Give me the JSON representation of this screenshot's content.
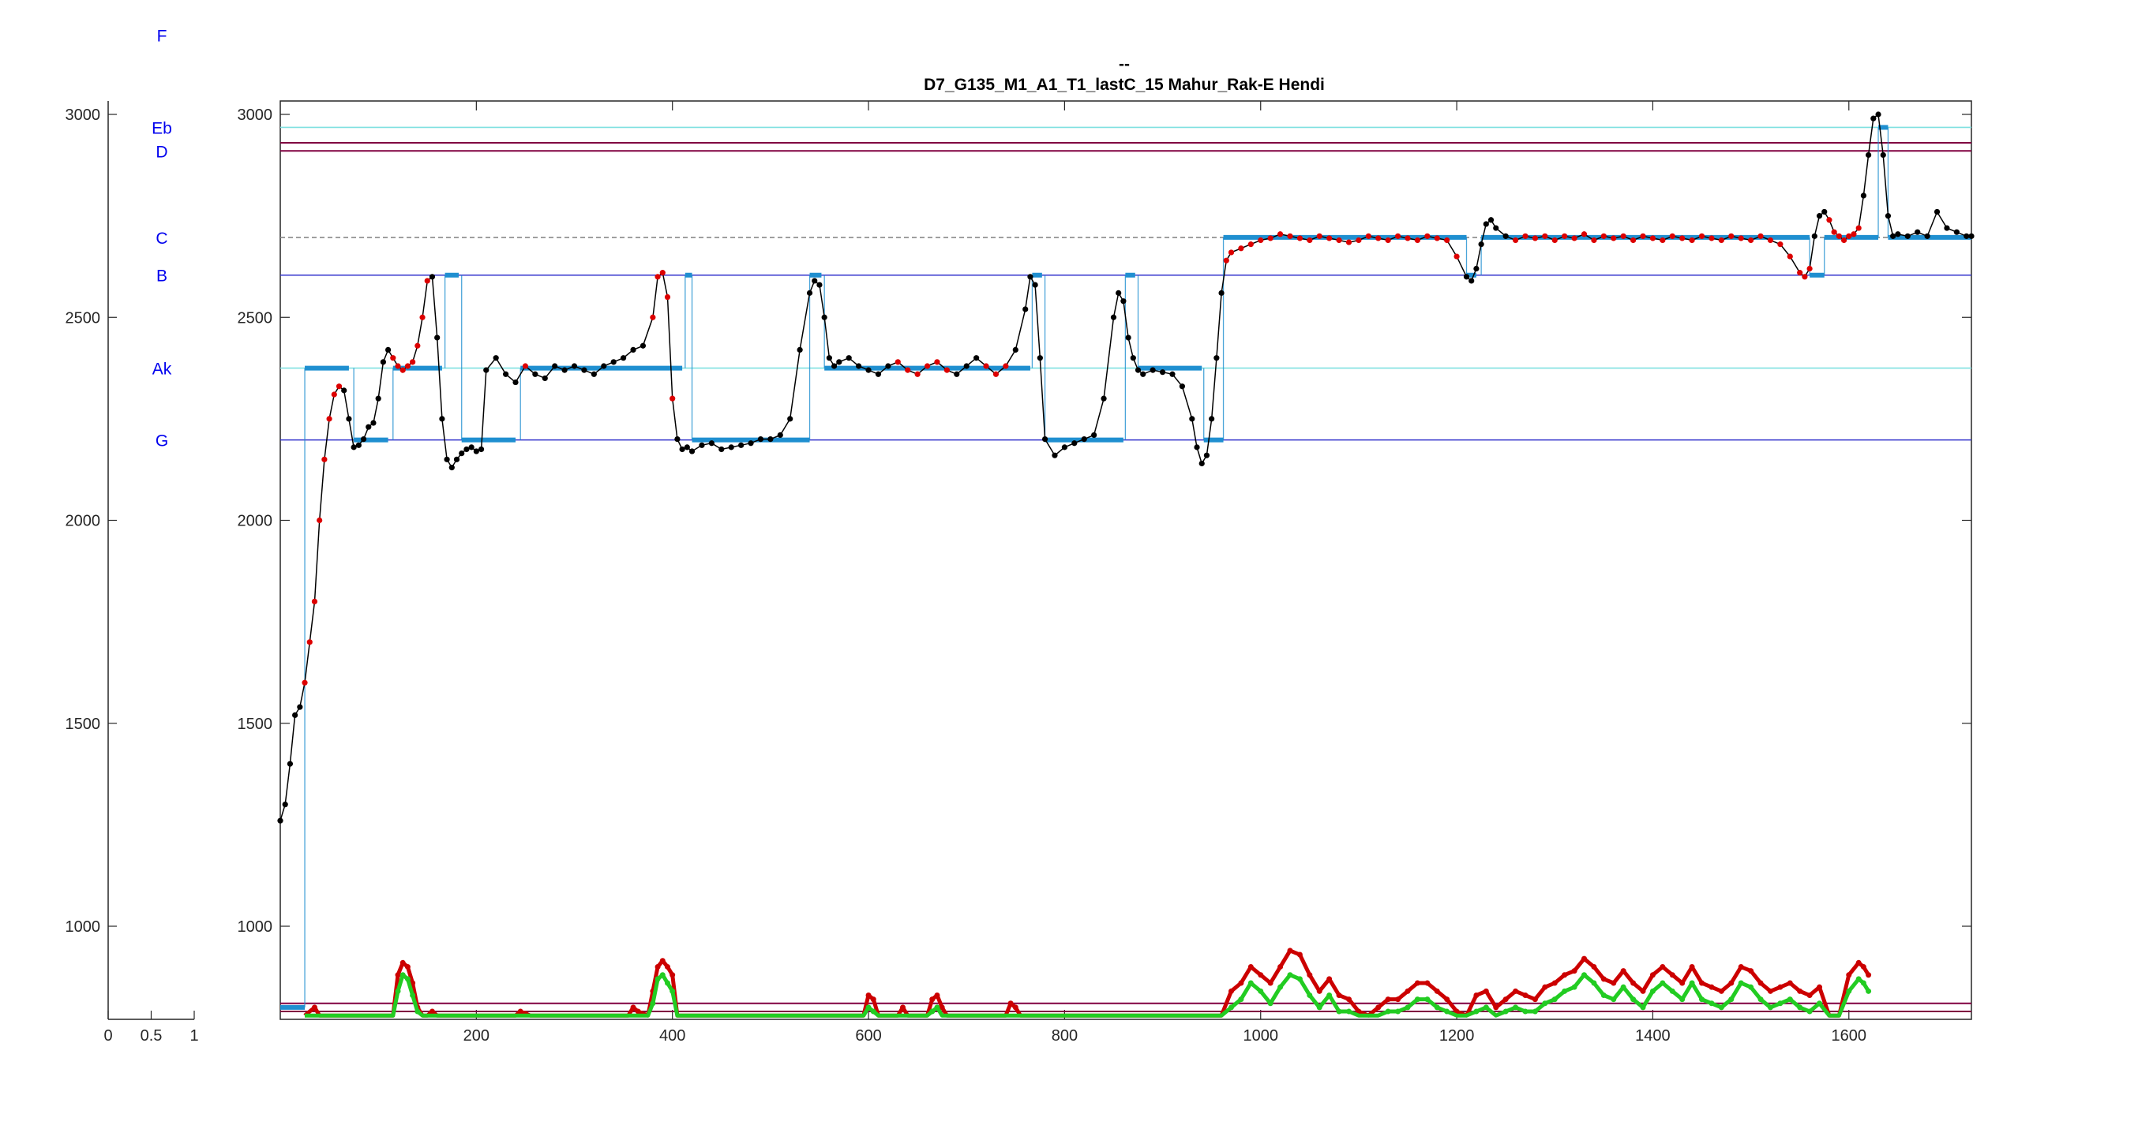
{
  "title_line1": "--",
  "title_line2": "D7_G135_M1_A1_T1_lastC_15 Mahur_Rak-E Hendi",
  "note_axis": {
    "xticks": [
      "0",
      "0.5",
      "1"
    ],
    "yticks": [
      "3000",
      "2500",
      "2000",
      "1500",
      "1000"
    ]
  },
  "main_axis": {
    "xticks": [
      "200",
      "400",
      "600",
      "800",
      "1000",
      "1200",
      "1400",
      "1600"
    ],
    "yticks": [
      "3000",
      "2500",
      "2000",
      "1500",
      "1000"
    ]
  },
  "notes": [
    "F",
    "Eb",
    "D",
    "C",
    "B",
    "Ak",
    "G"
  ],
  "colors": {
    "pitch_black": "#000000",
    "pitch_red": "#dd0000",
    "segments_blue": "#1f8fd0",
    "energy_red": "#cc0000",
    "energy_green": "#22cc22",
    "line_blue": "#3333cc",
    "line_cyan": "#7fe0e0",
    "line_maroon": "#800040",
    "line_grey": "#888888"
  },
  "chart_data": {
    "type": "line",
    "title": "D7_G135_M1_A1_T1_lastC_15 Mahur_Rak-E Hendi",
    "xlim": [
      0,
      1725
    ],
    "ylim": [
      780,
      3030
    ],
    "grid": false,
    "note_lines": [
      {
        "name": "Eb",
        "y": 2968,
        "color": "cyan"
      },
      {
        "name": "",
        "y": 2930,
        "color": "maroon"
      },
      {
        "name": "D",
        "y": 2910,
        "color": "maroon"
      },
      {
        "name": "C",
        "y": 2697,
        "color": "grey-dashed"
      },
      {
        "name": "B",
        "y": 2604,
        "color": "blue"
      },
      {
        "name": "Ak",
        "y": 2375,
        "color": "cyan"
      },
      {
        "name": "G",
        "y": 2198,
        "color": "blue"
      },
      {
        "name": "",
        "y": 810,
        "color": "maroon"
      },
      {
        "name": "",
        "y": 790,
        "color": "maroon"
      }
    ],
    "pitch": {
      "x": [
        0,
        5,
        10,
        15,
        20,
        25,
        30,
        35,
        40,
        45,
        50,
        55,
        60,
        65,
        70,
        75,
        80,
        85,
        90,
        95,
        100,
        105,
        110,
        115,
        120,
        125,
        130,
        135,
        140,
        145,
        150,
        155,
        160,
        165,
        170,
        175,
        180,
        185,
        190,
        195,
        200,
        205,
        210,
        220,
        230,
        240,
        250,
        260,
        270,
        280,
        290,
        300,
        310,
        320,
        330,
        340,
        350,
        360,
        370,
        380,
        385,
        390,
        395,
        400,
        405,
        410,
        415,
        420,
        430,
        440,
        450,
        460,
        470,
        480,
        490,
        500,
        510,
        520,
        530,
        540,
        545,
        550,
        555,
        560,
        565,
        570,
        580,
        590,
        600,
        610,
        620,
        630,
        640,
        650,
        660,
        670,
        680,
        690,
        700,
        710,
        720,
        730,
        740,
        750,
        760,
        765,
        770,
        775,
        780,
        790,
        800,
        810,
        820,
        830,
        840,
        850,
        855,
        860,
        865,
        870,
        875,
        880,
        890,
        900,
        910,
        920,
        930,
        935,
        940,
        945,
        950,
        955,
        960,
        965,
        970,
        980,
        990,
        1000,
        1010,
        1020,
        1030,
        1040,
        1050,
        1060,
        1070,
        1080,
        1090,
        1100,
        1110,
        1120,
        1130,
        1140,
        1150,
        1160,
        1170,
        1180,
        1190,
        1200,
        1210,
        1215,
        1220,
        1225,
        1230,
        1235,
        1240,
        1250,
        1260,
        1270,
        1280,
        1290,
        1300,
        1310,
        1320,
        1330,
        1340,
        1350,
        1360,
        1370,
        1380,
        1390,
        1400,
        1410,
        1420,
        1430,
        1440,
        1450,
        1460,
        1470,
        1480,
        1490,
        1500,
        1510,
        1520,
        1530,
        1540,
        1550,
        1555,
        1560,
        1565,
        1570,
        1575,
        1580,
        1585,
        1590,
        1595,
        1600,
        1605,
        1610,
        1615,
        1620,
        1625,
        1630,
        1635,
        1640,
        1645,
        1650,
        1660,
        1670,
        1680,
        1690,
        1700,
        1710,
        1720,
        1725
      ],
      "y": [
        1260,
        1300,
        1400,
        1520,
        1540,
        1600,
        1700,
        1800,
        2000,
        2150,
        2250,
        2310,
        2330,
        2320,
        2250,
        2180,
        2185,
        2200,
        2230,
        2240,
        2300,
        2390,
        2420,
        2400,
        2380,
        2370,
        2380,
        2390,
        2430,
        2500,
        2590,
        2600,
        2450,
        2250,
        2150,
        2130,
        2150,
        2165,
        2175,
        2180,
        2170,
        2175,
        2370,
        2400,
        2360,
        2340,
        2380,
        2360,
        2350,
        2380,
        2370,
        2380,
        2370,
        2360,
        2380,
        2390,
        2400,
        2420,
        2430,
        2500,
        2600,
        2610,
        2550,
        2300,
        2200,
        2175,
        2180,
        2170,
        2185,
        2190,
        2175,
        2180,
        2185,
        2190,
        2200,
        2200,
        2210,
        2250,
        2420,
        2560,
        2590,
        2580,
        2500,
        2400,
        2380,
        2390,
        2400,
        2380,
        2370,
        2360,
        2380,
        2390,
        2370,
        2360,
        2380,
        2390,
        2370,
        2360,
        2380,
        2400,
        2380,
        2360,
        2380,
        2420,
        2520,
        2600,
        2580,
        2400,
        2200,
        2160,
        2180,
        2190,
        2200,
        2210,
        2300,
        2500,
        2560,
        2540,
        2450,
        2400,
        2370,
        2360,
        2370,
        2365,
        2360,
        2330,
        2250,
        2180,
        2140,
        2160,
        2250,
        2400,
        2560,
        2640,
        2660,
        2670,
        2680,
        2690,
        2695,
        2705,
        2700,
        2695,
        2690,
        2700,
        2695,
        2690,
        2685,
        2690,
        2700,
        2695,
        2690,
        2700,
        2695,
        2690,
        2700,
        2695,
        2690,
        2650,
        2600,
        2590,
        2620,
        2680,
        2730,
        2740,
        2720,
        2700,
        2690,
        2700,
        2695,
        2700,
        2690,
        2700,
        2695,
        2705,
        2690,
        2700,
        2695,
        2700,
        2690,
        2700,
        2695,
        2690,
        2700,
        2695,
        2690,
        2700,
        2695,
        2690,
        2700,
        2695,
        2690,
        2700,
        2690,
        2680,
        2650,
        2610,
        2600,
        2620,
        2700,
        2750,
        2760,
        2740,
        2710,
        2700,
        2690,
        2700,
        2705,
        2720,
        2800,
        2900,
        2990,
        3000,
        2900,
        2750,
        2700,
        2705,
        2700,
        2710,
        2700,
        2760,
        2720,
        2710,
        2700,
        2700
      ],
      "red_ranges": [
        [
          25,
          60
        ],
        [
          115,
          150
        ],
        [
          245,
          255
        ],
        [
          380,
          400
        ],
        [
          625,
          680
        ],
        [
          720,
          740
        ],
        [
          965,
          1200
        ],
        [
          1260,
          1560
        ],
        [
          1580,
          1610
        ]
      ]
    },
    "segments": [
      {
        "x": [
          0,
          25
        ],
        "y": 800
      },
      {
        "x": [
          25,
          70
        ],
        "y": 2375
      },
      {
        "x": [
          75,
          110
        ],
        "y": 2198
      },
      {
        "x": [
          115,
          165
        ],
        "y": 2375
      },
      {
        "x": [
          168,
          182
        ],
        "y": 2604
      },
      {
        "x": [
          185,
          240
        ],
        "y": 2198
      },
      {
        "x": [
          245,
          410
        ],
        "y": 2375
      },
      {
        "x": [
          413,
          420
        ],
        "y": 2604
      },
      {
        "x": [
          420,
          540
        ],
        "y": 2198
      },
      {
        "x": [
          540,
          552
        ],
        "y": 2604
      },
      {
        "x": [
          555,
          765
        ],
        "y": 2375
      },
      {
        "x": [
          767,
          777
        ],
        "y": 2604
      },
      {
        "x": [
          780,
          860
        ],
        "y": 2198
      },
      {
        "x": [
          862,
          872
        ],
        "y": 2604
      },
      {
        "x": [
          875,
          940
        ],
        "y": 2375
      },
      {
        "x": [
          942,
          962
        ],
        "y": 2198
      },
      {
        "x": [
          962,
          1210
        ],
        "y": 2697
      },
      {
        "x": [
          1210,
          1220
        ],
        "y": 2604
      },
      {
        "x": [
          1225,
          1560
        ],
        "y": 2697
      },
      {
        "x": [
          1560,
          1575
        ],
        "y": 2604
      },
      {
        "x": [
          1575,
          1630
        ],
        "y": 2697
      },
      {
        "x": [
          1630,
          1640
        ],
        "y": 2968
      },
      {
        "x": [
          1640,
          1725
        ],
        "y": 2697
      }
    ],
    "energy": {
      "x": [
        25,
        35,
        40,
        115,
        120,
        125,
        130,
        135,
        140,
        145,
        150,
        155,
        160,
        240,
        245,
        250,
        255,
        355,
        360,
        365,
        375,
        380,
        385,
        390,
        395,
        400,
        405,
        595,
        600,
        605,
        610,
        630,
        635,
        640,
        660,
        665,
        670,
        675,
        680,
        740,
        745,
        750,
        755,
        960,
        970,
        980,
        990,
        1000,
        1010,
        1020,
        1030,
        1040,
        1050,
        1060,
        1070,
        1080,
        1090,
        1100,
        1110,
        1120,
        1130,
        1140,
        1150,
        1160,
        1170,
        1180,
        1190,
        1200,
        1210,
        1220,
        1230,
        1240,
        1250,
        1260,
        1270,
        1280,
        1290,
        1300,
        1310,
        1320,
        1330,
        1340,
        1350,
        1360,
        1370,
        1380,
        1390,
        1400,
        1410,
        1420,
        1430,
        1440,
        1450,
        1460,
        1470,
        1480,
        1490,
        1500,
        1510,
        1520,
        1530,
        1540,
        1550,
        1560,
        1570,
        1580,
        1590,
        1600,
        1610,
        1615,
        1620,
        1625
      ],
      "red": [
        780,
        800,
        780,
        780,
        880,
        910,
        900,
        860,
        800,
        780,
        780,
        790,
        780,
        780,
        790,
        785,
        780,
        780,
        800,
        790,
        780,
        840,
        900,
        915,
        900,
        880,
        780,
        780,
        830,
        820,
        780,
        780,
        800,
        780,
        780,
        820,
        830,
        800,
        780,
        780,
        810,
        800,
        780,
        780,
        840,
        860,
        900,
        880,
        860,
        900,
        940,
        930,
        880,
        840,
        870,
        830,
        820,
        790,
        780,
        800,
        820,
        820,
        840,
        860,
        860,
        840,
        820,
        790,
        780,
        830,
        840,
        800,
        820,
        840,
        830,
        820,
        850,
        860,
        880,
        890,
        920,
        900,
        870,
        860,
        890,
        860,
        840,
        880,
        900,
        880,
        860,
        900,
        860,
        850,
        840,
        860,
        900,
        890,
        860,
        840,
        850,
        860,
        840,
        830,
        850,
        780,
        780,
        880,
        910,
        900,
        880
      ],
      "green": [
        780,
        780,
        780,
        780,
        840,
        880,
        870,
        830,
        790,
        780,
        780,
        780,
        780,
        780,
        780,
        780,
        780,
        780,
        780,
        780,
        780,
        810,
        870,
        880,
        860,
        840,
        780,
        780,
        800,
        790,
        780,
        780,
        780,
        780,
        780,
        790,
        800,
        780,
        780,
        780,
        780,
        780,
        780,
        780,
        800,
        820,
        860,
        840,
        810,
        850,
        880,
        870,
        830,
        800,
        830,
        790,
        790,
        780,
        780,
        780,
        790,
        790,
        800,
        820,
        820,
        800,
        790,
        780,
        780,
        790,
        800,
        780,
        790,
        800,
        790,
        790,
        810,
        820,
        840,
        850,
        880,
        860,
        830,
        820,
        850,
        820,
        800,
        840,
        860,
        840,
        820,
        860,
        820,
        810,
        800,
        820,
        860,
        850,
        820,
        800,
        810,
        820,
        800,
        790,
        810,
        780,
        780,
        840,
        870,
        860,
        840
      ]
    }
  }
}
